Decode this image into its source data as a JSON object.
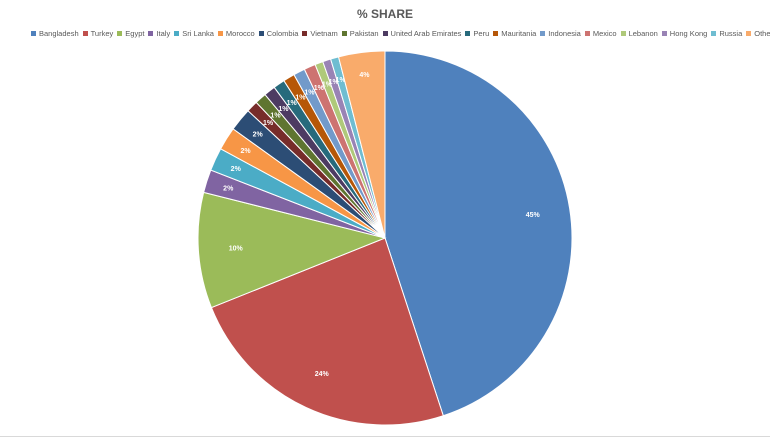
{
  "chart_data": {
    "type": "pie",
    "title": "% SHARE",
    "legend_position": "top",
    "categories": [
      "Bangladesh",
      "Turkey",
      "Egypt",
      "Italy",
      "Sri Lanka",
      "Morocco",
      "Colombia",
      "Vietnam",
      "Pakistan",
      "United Arab Emirates",
      "Peru",
      "Mauritania",
      "Indonesia",
      "Mexico",
      "Lebanon",
      "Hong Kong",
      "Russia",
      "Others"
    ],
    "values": [
      45,
      24,
      10,
      2,
      2,
      2,
      2,
      1,
      1,
      1,
      1,
      1,
      1,
      1,
      0.7,
      0.7,
      0.7,
      4
    ],
    "labels": [
      "45%",
      "24%",
      "10%",
      "2%",
      "2%",
      "2%",
      "2%",
      "1%",
      "1%",
      "1%",
      "1%",
      "1%",
      "1%",
      "1%",
      "1%",
      "1%",
      "1%",
      "4%"
    ],
    "colors": [
      "#4f81bd",
      "#c0504d",
      "#9bbb59",
      "#8064a2",
      "#4bacc6",
      "#f79646",
      "#2c4d75",
      "#772c2a",
      "#5f7530",
      "#4d3b62",
      "#276a7c",
      "#b65708",
      "#729aca",
      "#cd7371",
      "#afc97a",
      "#9983b5",
      "#6fbdd1",
      "#f9ab6b"
    ]
  }
}
